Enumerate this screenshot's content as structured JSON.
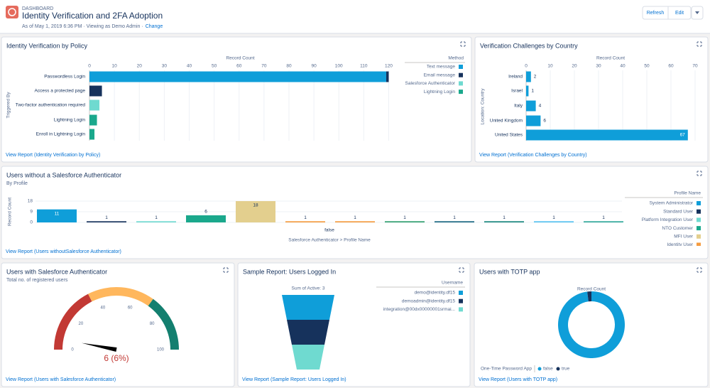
{
  "header": {
    "label": "DASHBOARD",
    "title": "Identity Verification and 2FA Adoption",
    "meta": "As of May 1, 2019 6:36 PM · Viewing as Demo Admin ·",
    "change": "Change",
    "buttons": [
      "Refresh",
      "Edit"
    ]
  },
  "panels": [
    {
      "title": "Identity Verification by Policy",
      "link": "View Report (Identity Verification by Policy)",
      "chart": {
        "type": "hbar-stacked",
        "x_label": "Record Count",
        "y_label": "Triggered By",
        "legend_title": "Method",
        "categories": [
          "Passwordless Login",
          "Access a protected page",
          "Two-factor authentication required",
          "Lightning Login",
          "Enroll in Lightning Login"
        ],
        "series": [
          {
            "name": "Text message",
            "color": "#0f9ed9",
            "values": [
              119,
              null,
              null,
              null,
              null
            ]
          },
          {
            "name": "Email message",
            "color": "#16325c",
            "values": [
              1,
              5,
              null,
              null,
              null
            ]
          },
          {
            "name": "Salesforce Authenticator",
            "color": "#6fdad0",
            "values": [
              null,
              null,
              4,
              null,
              null
            ]
          },
          {
            "name": "Lightning Login",
            "color": "#1aa88c",
            "values": [
              null,
              null,
              null,
              3,
              2
            ]
          }
        ],
        "xlim": [
          0,
          121
        ],
        "xticks": [
          0,
          10,
          20,
          30,
          40,
          50,
          60,
          70,
          80,
          90,
          100,
          110,
          120
        ],
        "grid": true
      }
    },
    {
      "title": "Verification Challenges by Country",
      "link": "View Report (Verification Challenges by Country)",
      "chart": {
        "type": "hbar",
        "x_label": "Record Count",
        "y_label": "Location: Country",
        "color": "#0f9ed9",
        "categories": [
          "Ireland",
          "Israel",
          "Italy",
          "United Kingdom",
          "United States"
        ],
        "values": [
          2,
          1,
          4,
          6,
          67
        ],
        "xlim": [
          0,
          70
        ],
        "xticks": [
          0,
          10,
          20,
          30,
          40,
          50,
          60,
          70
        ],
        "grid": true
      }
    },
    {
      "title": "Users without a Salesforce Authenticator",
      "subtitle": "By Profile",
      "link": "View Report (Users withoutSalesforce Authenticator)",
      "chart": {
        "type": "bar-grouped",
        "x_label": "Salesforce Authenticator > Profile Name",
        "y_label": "Record Count",
        "legend_title": "Profile Name",
        "categories": [
          "false"
        ],
        "series": [
          {
            "name": "System Administrator",
            "color": "#0f9ed9",
            "values": [
              11
            ]
          },
          {
            "name": "Standard User",
            "color": "#16325c",
            "values": [
              1
            ]
          },
          {
            "name": "Platform Integration User",
            "color": "#6fdad0",
            "values": [
              1
            ]
          },
          {
            "name": "NTO Customer",
            "color": "#1aa88c",
            "values": [
              6
            ]
          },
          {
            "name": "MFI User",
            "color": "#e3cf8e",
            "values": [
              18
            ]
          },
          {
            "name": "Identity User",
            "color": "#f59b3f",
            "values": [
              1
            ]
          },
          {
            "color": "#f59b3f",
            "values": [
              1
            ]
          },
          {
            "color": "#2e9e6e",
            "values": [
              1
            ]
          },
          {
            "color": "#176580",
            "values": [
              1
            ]
          },
          {
            "color": "#16867c",
            "values": [
              1
            ]
          },
          {
            "color": "#55c2f0",
            "values": [
              1
            ]
          },
          {
            "color": "#2fa89a",
            "values": [
              1
            ]
          }
        ],
        "ylim": [
          0,
          18
        ],
        "yticks": [
          0,
          9,
          18
        ]
      }
    },
    {
      "title": "Users with Salesforce Authenticator",
      "subtitle": "Total no. of registered users",
      "link": "View Report (Users with Salesforce Authenticator)",
      "chart": {
        "type": "gauge",
        "value": 6,
        "value_label": "6 (6%)",
        "lim": [
          0,
          100
        ],
        "ticks": [
          0,
          20,
          40,
          60,
          80,
          100
        ],
        "bands": [
          {
            "from": 0,
            "to": 35,
            "color": "#c23934"
          },
          {
            "from": 35,
            "to": 70,
            "color": "#ffb75d"
          },
          {
            "from": 70,
            "to": 100,
            "color": "#137f6f"
          }
        ]
      }
    },
    {
      "title": "Sample Report: Users Logged In",
      "link": "View Report (Sample Report: Users Logged In)",
      "chart": {
        "type": "funnel",
        "subtitle": "Sum of Active: 3",
        "legend_title": "Username",
        "categories": [
          "demo@identity.df15",
          "demoadmin@identity.df15",
          "integration@00dx00000001srmai..."
        ],
        "values": [
          1,
          1,
          1
        ],
        "colors": [
          "#0f9ed9",
          "#16325c",
          "#6fdad0"
        ]
      }
    },
    {
      "title": "Users with TOTP app",
      "link": "View Report (Users with TOTP app)",
      "chart": {
        "type": "donut",
        "label": "Record Count",
        "legend_title": "One-Time Password App",
        "categories": [
          "false",
          "true"
        ],
        "values": [
          98,
          2
        ],
        "colors": [
          "#0f9ed9",
          "#16325c"
        ]
      }
    }
  ]
}
